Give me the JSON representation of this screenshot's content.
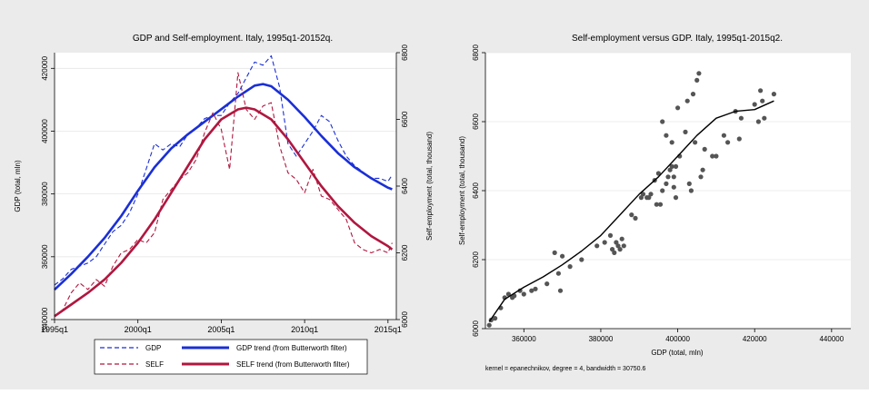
{
  "colors": {
    "background": "#ebebeb",
    "panel": "#ffffff",
    "gdp": "#1a2fd6",
    "self": "#b0173f",
    "scatter_point": "#555555",
    "fit_line": "#000000",
    "grid": "#e6e6e6",
    "axis": "#000000"
  },
  "chart_data": [
    {
      "type": "line",
      "title": "GDP and Self-employment. Italy, 1995q1-20152q.",
      "ylabel": "GDP (total, mln)",
      "y2label": "Self-employment (total, thousand)",
      "xlim": [
        1995.0,
        2015.5
      ],
      "ylim": [
        340000,
        425000
      ],
      "y2lim": [
        6000,
        6800
      ],
      "xticks": [
        1995,
        2000,
        2005,
        2010,
        2015
      ],
      "xtick_labels": [
        "1995q1",
        "2000q1",
        "2005q1",
        "2010q1",
        "2015q1"
      ],
      "yticks": [
        340000,
        360000,
        380000,
        400000,
        420000
      ],
      "y2ticks": [
        6000,
        6200,
        6400,
        6600,
        6800
      ],
      "grid": true,
      "legend_position": "bottom",
      "legend": [
        {
          "label": "GDP",
          "series": "gdp",
          "style": "dashed"
        },
        {
          "label": "GDP trend (from Butterworth filter)",
          "series": "gdp_trend",
          "style": "solid"
        },
        {
          "label": "SELF",
          "series": "self",
          "style": "dashed"
        },
        {
          "label": "SELF trend (from Butterworth filter)",
          "series": "self_trend",
          "style": "solid"
        }
      ],
      "series": [
        {
          "name": "GDP",
          "key": "gdp",
          "axis": "left",
          "style": "dashed",
          "x": [
            1995.0,
            1995.5,
            1996.0,
            1996.5,
            1997.0,
            1997.5,
            1998.0,
            1998.5,
            1999.0,
            1999.5,
            2000.0,
            2000.5,
            2001.0,
            2001.5,
            2002.0,
            2002.5,
            2003.0,
            2003.5,
            2004.0,
            2004.5,
            2005.0,
            2005.5,
            2006.0,
            2006.5,
            2007.0,
            2007.5,
            2008.0,
            2008.5,
            2009.0,
            2009.5,
            2010.0,
            2010.5,
            2011.0,
            2011.5,
            2012.0,
            2012.5,
            2013.0,
            2013.5,
            2014.0,
            2014.5,
            2015.0,
            2015.25
          ],
          "y": [
            351000,
            353000,
            356000,
            357000,
            358000,
            360000,
            364000,
            368000,
            370000,
            374000,
            380000,
            388000,
            396000,
            394000,
            396000,
            395000,
            399000,
            401000,
            404000,
            405000,
            405000,
            409000,
            412000,
            417000,
            422000,
            421000,
            424000,
            414000,
            396000,
            392000,
            396000,
            400000,
            405000,
            403000,
            397000,
            392000,
            389000,
            387000,
            385000,
            385000,
            384000,
            386000
          ]
        },
        {
          "name": "GDP trend (from Butterworth filter)",
          "key": "gdp_trend",
          "axis": "left",
          "style": "solid",
          "x": [
            1995.0,
            1996.0,
            1997.0,
            1998.0,
            1999.0,
            2000.0,
            2001.0,
            2002.0,
            2003.0,
            2004.0,
            2005.0,
            2006.0,
            2007.0,
            2007.5,
            2008.0,
            2009.0,
            2010.0,
            2011.0,
            2012.0,
            2013.0,
            2014.0,
            2015.0,
            2015.25
          ],
          "y": [
            349500,
            354500,
            360000,
            366000,
            373000,
            381000,
            388500,
            394500,
            399000,
            403000,
            407000,
            411000,
            414500,
            415000,
            414300,
            410000,
            404500,
            398500,
            393000,
            388500,
            385000,
            382000,
            381500
          ]
        },
        {
          "name": "SELF",
          "key": "self",
          "axis": "right",
          "style": "dashed",
          "x": [
            1995.0,
            1995.5,
            1996.0,
            1996.5,
            1997.0,
            1997.5,
            1998.0,
            1998.5,
            1999.0,
            1999.5,
            2000.0,
            2000.5,
            2001.0,
            2001.5,
            2002.0,
            2002.5,
            2003.0,
            2003.5,
            2004.0,
            2004.5,
            2005.0,
            2005.5,
            2006.0,
            2006.5,
            2007.0,
            2007.5,
            2008.0,
            2008.5,
            2009.0,
            2009.5,
            2010.0,
            2010.5,
            2011.0,
            2011.5,
            2012.0,
            2012.5,
            2013.0,
            2013.5,
            2014.0,
            2014.5,
            2015.0,
            2015.25
          ],
          "y": [
            6010,
            6030,
            6080,
            6110,
            6090,
            6120,
            6100,
            6160,
            6200,
            6210,
            6240,
            6230,
            6260,
            6360,
            6390,
            6420,
            6440,
            6480,
            6560,
            6620,
            6570,
            6450,
            6740,
            6630,
            6600,
            6640,
            6650,
            6520,
            6440,
            6420,
            6380,
            6450,
            6370,
            6360,
            6330,
            6300,
            6230,
            6210,
            6200,
            6210,
            6200,
            6230
          ]
        },
        {
          "name": "SELF trend (from Butterworth filter)",
          "key": "self_trend",
          "axis": "right",
          "style": "solid",
          "x": [
            1995.0,
            1996.0,
            1997.0,
            1998.0,
            1999.0,
            2000.0,
            2001.0,
            2002.0,
            2003.0,
            2004.0,
            2005.0,
            2006.0,
            2006.5,
            2007.0,
            2008.0,
            2009.0,
            2010.0,
            2011.0,
            2012.0,
            2013.0,
            2014.0,
            2015.0,
            2015.25
          ],
          "y": [
            6010,
            6045,
            6080,
            6120,
            6170,
            6230,
            6300,
            6380,
            6460,
            6540,
            6600,
            6630,
            6635,
            6630,
            6600,
            6540,
            6470,
            6400,
            6340,
            6290,
            6250,
            6220,
            6210
          ]
        }
      ]
    },
    {
      "type": "scatter",
      "title": "Self-employment versus GDP. Italy, 1995q1-2015q2.",
      "xlabel": "GDP (total, mln)",
      "ylabel": "Self-employment (total, thousand)",
      "note": "kernel = epanechnikov, degree = 4, bandwidth = 30750.6",
      "xlim": [
        350000,
        445000
      ],
      "ylim": [
        6000,
        6800
      ],
      "xticks": [
        360000,
        380000,
        400000,
        420000,
        440000
      ],
      "yticks": [
        6000,
        6200,
        6400,
        6600,
        6800
      ],
      "grid": true,
      "points": [
        [
          351000,
          6010
        ],
        [
          351500,
          6025
        ],
        [
          352500,
          6030
        ],
        [
          354000,
          6060
        ],
        [
          355000,
          6090
        ],
        [
          356000,
          6100
        ],
        [
          357000,
          6090
        ],
        [
          357500,
          6095
        ],
        [
          359000,
          6110
        ],
        [
          360000,
          6100
        ],
        [
          362000,
          6110
        ],
        [
          363000,
          6115
        ],
        [
          366000,
          6130
        ],
        [
          368000,
          6220
        ],
        [
          369000,
          6160
        ],
        [
          369500,
          6110
        ],
        [
          370000,
          6210
        ],
        [
          372000,
          6180
        ],
        [
          375000,
          6200
        ],
        [
          379000,
          6240
        ],
        [
          381000,
          6250
        ],
        [
          382500,
          6270
        ],
        [
          383000,
          6230
        ],
        [
          383500,
          6220
        ],
        [
          384000,
          6250
        ],
        [
          384500,
          6240
        ],
        [
          385000,
          6230
        ],
        [
          385500,
          6260
        ],
        [
          386000,
          6240
        ],
        [
          388000,
          6330
        ],
        [
          389000,
          6320
        ],
        [
          390500,
          6380
        ],
        [
          391000,
          6390
        ],
        [
          392000,
          6380
        ],
        [
          392500,
          6380
        ],
        [
          393000,
          6390
        ],
        [
          394000,
          6430
        ],
        [
          394500,
          6360
        ],
        [
          395000,
          6450
        ],
        [
          395500,
          6360
        ],
        [
          396000,
          6400
        ],
        [
          397000,
          6420
        ],
        [
          397500,
          6440
        ],
        [
          398000,
          6460
        ],
        [
          398500,
          6470
        ],
        [
          399000,
          6410
        ],
        [
          399500,
          6380
        ],
        [
          396000,
          6600
        ],
        [
          397000,
          6560
        ],
        [
          398500,
          6540
        ],
        [
          399000,
          6440
        ],
        [
          399500,
          6470
        ],
        [
          400000,
          6640
        ],
        [
          400500,
          6500
        ],
        [
          402000,
          6570
        ],
        [
          402500,
          6660
        ],
        [
          403000,
          6420
        ],
        [
          403500,
          6400
        ],
        [
          404000,
          6680
        ],
        [
          404500,
          6540
        ],
        [
          405000,
          6720
        ],
        [
          405500,
          6740
        ],
        [
          406000,
          6440
        ],
        [
          406500,
          6460
        ],
        [
          407000,
          6520
        ],
        [
          409000,
          6500
        ],
        [
          410000,
          6500
        ],
        [
          412000,
          6560
        ],
        [
          413000,
          6540
        ],
        [
          415000,
          6630
        ],
        [
          416000,
          6550
        ],
        [
          416500,
          6610
        ],
        [
          420000,
          6650
        ],
        [
          421000,
          6600
        ],
        [
          421500,
          6690
        ],
        [
          422000,
          6660
        ],
        [
          422500,
          6610
        ],
        [
          425000,
          6680
        ]
      ],
      "fit": {
        "x": [
          351000,
          355000,
          360000,
          365000,
          370000,
          375000,
          380000,
          385000,
          390000,
          395000,
          400000,
          405000,
          410000,
          415000,
          420000,
          425000
        ],
        "y": [
          6020,
          6085,
          6120,
          6150,
          6185,
          6225,
          6270,
          6330,
          6390,
          6440,
          6500,
          6560,
          6610,
          6630,
          6635,
          6660
        ]
      }
    }
  ]
}
